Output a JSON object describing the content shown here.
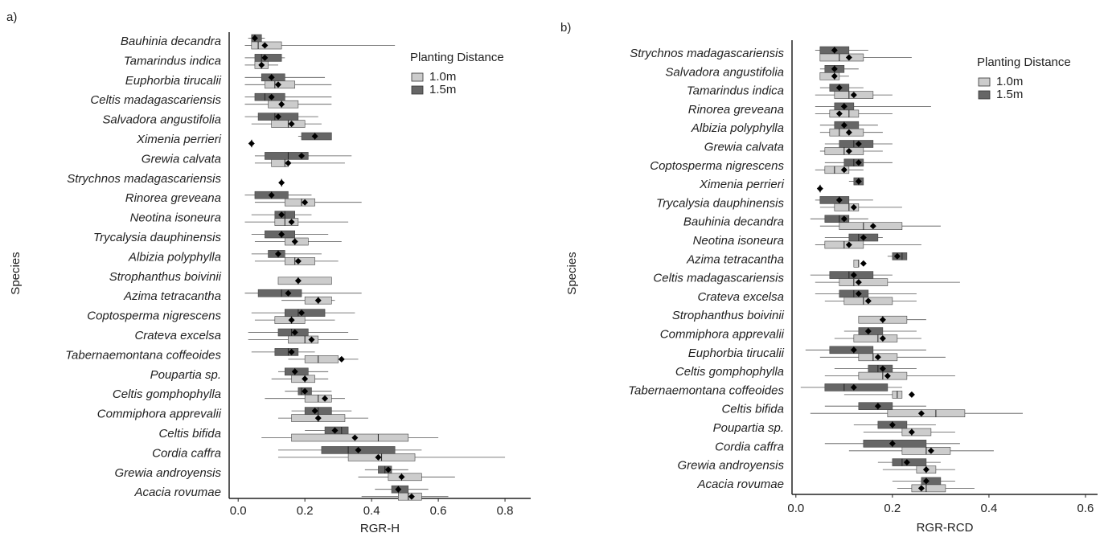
{
  "chart_data": [
    {
      "type": "boxplot",
      "panel_label": "a)",
      "x_label": "RGR-H",
      "y_label": "Species",
      "legend_title": "Planting Distance",
      "xlim": [
        -0.027,
        0.877
      ],
      "xticks": [
        {
          "value": 0,
          "label": "0.0"
        },
        0.2,
        0.4,
        0.6,
        0.8
      ],
      "categories": [
        "Bauhinia decandra",
        "Tamarindus indica",
        "Euphorbia tirucalii",
        "Celtis madagascariensis",
        "Salvadora angustifolia",
        "Ximenia perrieri",
        "Grewia calvata",
        "Strychnos madagascariensis",
        "Rinorea greveana",
        "Neotina isoneura",
        "Trycalysia dauphinensis",
        "Albizia polyphylla",
        "Strophanthus boivinii",
        "Azima tetracantha",
        "Coptosperma nigrescens",
        "Crateva excelsa",
        "Tabernaemontana coffeoides",
        "Poupartia sp.",
        "Celtis gomphophylla",
        "Commiphora apprevalii",
        "Celtis bifida",
        "Cordia caffra",
        "Grewia androyensis",
        "Acacia rovumae"
      ],
      "series": [
        {
          "name": "1.0m",
          "color": "#cccccc",
          "whislo": [
            0.02,
            0.02,
            0.02,
            0.02,
            0.04,
            0.04,
            0.05,
            0.13,
            0.05,
            0.02,
            0.05,
            0.05,
            0.12,
            0.13,
            0.05,
            0.03,
            0.15,
            0.1,
            0.08,
            0.12,
            0.07,
            0.12,
            0.36,
            0.37
          ],
          "q1": [
            0.04,
            0.05,
            0.08,
            0.09,
            0.1,
            0.04,
            0.1,
            0.13,
            0.14,
            0.11,
            0.14,
            0.14,
            0.12,
            0.2,
            0.11,
            0.15,
            0.2,
            0.16,
            0.2,
            0.16,
            0.16,
            0.33,
            0.45,
            0.48
          ],
          "median": [
            0.06,
            0.07,
            0.11,
            0.13,
            0.15,
            0.04,
            0.14,
            0.13,
            0.19,
            0.14,
            0.17,
            0.17,
            0.18,
            0.24,
            0.16,
            0.2,
            0.24,
            0.2,
            0.24,
            0.24,
            0.42,
            0.43,
            0.49,
            0.51
          ],
          "q3": [
            0.13,
            0.09,
            0.17,
            0.18,
            0.2,
            0.04,
            0.15,
            0.13,
            0.23,
            0.18,
            0.21,
            0.23,
            0.28,
            0.28,
            0.2,
            0.24,
            0.3,
            0.23,
            0.28,
            0.32,
            0.51,
            0.53,
            0.55,
            0.55
          ],
          "whishi": [
            0.47,
            0.12,
            0.28,
            0.28,
            0.25,
            0.04,
            0.32,
            0.13,
            0.37,
            0.33,
            0.31,
            0.3,
            0.28,
            0.29,
            0.29,
            0.36,
            0.36,
            0.27,
            0.32,
            0.39,
            0.6,
            0.8,
            0.65,
            0.63
          ],
          "mean": [
            0.08,
            0.07,
            0.12,
            0.13,
            0.16,
            0.04,
            0.15,
            0.13,
            0.2,
            0.16,
            0.17,
            0.18,
            0.18,
            0.24,
            0.16,
            0.22,
            0.31,
            0.2,
            0.26,
            0.24,
            0.35,
            0.42,
            0.49,
            0.52
          ]
        },
        {
          "name": "1.5m",
          "color": "#666666",
          "whislo": [
            0.03,
            0.02,
            0.02,
            0.02,
            0.02,
            0.18,
            0.05,
            null,
            0.02,
            0.04,
            0.04,
            0.04,
            null,
            0.02,
            0.04,
            0.03,
            0.04,
            0.12,
            0.14,
            0.16,
            0.2,
            0.12,
            0.38,
            0.41
          ],
          "q1": [
            0.04,
            0.05,
            0.07,
            0.05,
            0.06,
            0.19,
            0.08,
            null,
            0.05,
            0.11,
            0.08,
            0.09,
            null,
            0.06,
            0.14,
            0.12,
            0.11,
            0.14,
            0.18,
            0.2,
            0.26,
            0.25,
            0.42,
            0.46
          ],
          "median": [
            0.05,
            0.07,
            0.1,
            0.08,
            0.11,
            0.23,
            0.15,
            null,
            0.1,
            0.14,
            0.13,
            0.12,
            null,
            0.13,
            0.18,
            0.16,
            0.15,
            0.17,
            0.19,
            0.24,
            0.31,
            0.33,
            0.44,
            0.48
          ],
          "q3": [
            0.07,
            0.13,
            0.14,
            0.14,
            0.18,
            0.28,
            0.21,
            null,
            0.15,
            0.17,
            0.17,
            0.14,
            null,
            0.19,
            0.26,
            0.21,
            0.18,
            0.21,
            0.22,
            0.28,
            0.33,
            0.47,
            0.46,
            0.51
          ],
          "whishi": [
            0.08,
            0.14,
            0.26,
            0.28,
            0.24,
            0.28,
            0.34,
            null,
            0.22,
            0.22,
            0.27,
            0.25,
            null,
            0.37,
            0.35,
            0.33,
            0.23,
            0.27,
            0.28,
            0.34,
            0.33,
            0.55,
            0.51,
            0.57
          ],
          "mean": [
            0.05,
            0.08,
            0.1,
            0.1,
            0.12,
            0.23,
            0.19,
            null,
            0.1,
            0.13,
            0.13,
            0.12,
            null,
            0.15,
            0.19,
            0.17,
            0.16,
            0.17,
            0.2,
            0.23,
            0.29,
            0.36,
            0.45,
            0.48
          ]
        }
      ]
    },
    {
      "type": "boxplot",
      "panel_label": "b)",
      "x_label": "RGR-RCD",
      "y_label": "Species",
      "legend_title": "Planting Distance",
      "xlim": [
        -0.008,
        0.625
      ],
      "xticks": [
        {
          "value": 0,
          "label": "0.0"
        },
        0.2,
        0.4,
        0.6
      ],
      "categories": [
        "Strychnos madagascariensis",
        "Salvadora angustifolia",
        "Tamarindus indica",
        "Rinorea greveana",
        "Albizia polyphylla",
        "Grewia calvata",
        "Coptosperma nigrescens",
        "Ximenia perrieri",
        "Trycalysia dauphinensis",
        "Bauhinia decandra",
        "Neotina isoneura",
        "Azima tetracantha",
        "Celtis madagascariensis",
        "Crateva excelsa",
        "Strophanthus boivinii",
        "Commiphora apprevalii",
        "Euphorbia tirucalii",
        "Celtis gomphophylla",
        "Tabernaemontana coffeoides",
        "Celtis bifida",
        "Poupartia sp.",
        "Cordia caffra",
        "Grewia androyensis",
        "Acacia rovumae"
      ],
      "series": [
        {
          "name": "1.0m",
          "color": "#cccccc",
          "whislo": [
            0.05,
            0.05,
            0.04,
            0.04,
            0.05,
            0.05,
            0.04,
            0.05,
            0.05,
            0.05,
            0.04,
            0.12,
            0.04,
            0.06,
            0.13,
            0.08,
            0.05,
            0.06,
            0.1,
            0.03,
            0.14,
            0.11,
            0.18,
            0.21
          ],
          "q1": [
            0.05,
            0.05,
            0.08,
            0.07,
            0.07,
            0.06,
            0.06,
            0.05,
            0.08,
            0.09,
            0.06,
            0.12,
            0.09,
            0.1,
            0.13,
            0.12,
            0.13,
            0.13,
            0.2,
            0.19,
            0.22,
            0.22,
            0.25,
            0.24
          ],
          "median": [
            0.09,
            0.08,
            0.11,
            0.11,
            0.09,
            0.1,
            0.08,
            0.05,
            0.11,
            0.14,
            0.1,
            0.13,
            0.12,
            0.14,
            0.18,
            0.17,
            0.16,
            0.18,
            0.21,
            0.29,
            0.24,
            0.27,
            0.27,
            0.27
          ],
          "q3": [
            0.14,
            0.09,
            0.16,
            0.13,
            0.14,
            0.14,
            0.11,
            0.05,
            0.13,
            0.22,
            0.14,
            0.13,
            0.19,
            0.2,
            0.23,
            0.21,
            0.21,
            0.23,
            0.22,
            0.35,
            0.28,
            0.32,
            0.29,
            0.31
          ],
          "whishi": [
            0.24,
            0.11,
            0.2,
            0.2,
            0.18,
            0.18,
            0.14,
            0.05,
            0.22,
            0.3,
            0.26,
            0.13,
            0.34,
            0.25,
            0.27,
            0.26,
            0.31,
            0.33,
            0.22,
            0.47,
            0.33,
            0.41,
            0.33,
            0.37
          ],
          "mean": [
            0.11,
            0.08,
            0.12,
            0.09,
            0.11,
            0.11,
            0.1,
            0.05,
            0.12,
            0.16,
            0.11,
            0.14,
            0.13,
            0.15,
            0.18,
            0.18,
            0.17,
            0.19,
            0.24,
            0.26,
            0.24,
            0.28,
            0.27,
            0.26
          ]
        },
        {
          "name": "1.5m",
          "color": "#666666",
          "whislo": [
            0.04,
            0.05,
            0.05,
            0.04,
            0.05,
            0.06,
            0.06,
            0.11,
            0.04,
            0.03,
            0.06,
            0.19,
            0.03,
            0.04,
            null,
            0.1,
            0.02,
            0.08,
            0.01,
            0.06,
            0.12,
            0.06,
            0.17,
            0.2
          ],
          "q1": [
            0.05,
            0.06,
            0.07,
            0.08,
            0.08,
            0.09,
            0.1,
            0.12,
            0.05,
            0.06,
            0.11,
            0.2,
            0.07,
            0.09,
            null,
            0.13,
            0.07,
            0.15,
            0.06,
            0.13,
            0.17,
            0.14,
            0.2,
            0.26
          ],
          "median": [
            0.08,
            0.08,
            0.09,
            0.1,
            0.1,
            0.12,
            0.12,
            0.13,
            0.09,
            0.09,
            0.13,
            0.22,
            0.11,
            0.12,
            null,
            0.15,
            0.12,
            0.17,
            0.1,
            0.17,
            0.2,
            0.2,
            0.22,
            0.27
          ],
          "q3": [
            0.11,
            0.1,
            0.11,
            0.12,
            0.13,
            0.16,
            0.14,
            0.14,
            0.11,
            0.11,
            0.17,
            0.23,
            0.16,
            0.15,
            null,
            0.18,
            0.16,
            0.2,
            0.19,
            0.2,
            0.23,
            0.27,
            0.27,
            0.3
          ],
          "whishi": [
            0.15,
            0.13,
            0.14,
            0.28,
            0.17,
            0.2,
            0.2,
            0.14,
            0.16,
            0.15,
            0.18,
            0.23,
            0.2,
            0.25,
            null,
            0.25,
            0.27,
            0.25,
            0.22,
            0.27,
            0.29,
            0.34,
            0.3,
            0.33
          ],
          "mean": [
            0.08,
            0.08,
            0.09,
            0.1,
            0.1,
            0.13,
            0.13,
            0.13,
            0.09,
            0.1,
            0.14,
            0.21,
            0.12,
            0.13,
            null,
            0.15,
            0.12,
            0.18,
            0.12,
            0.17,
            0.2,
            0.2,
            0.23,
            0.27
          ]
        }
      ]
    }
  ]
}
